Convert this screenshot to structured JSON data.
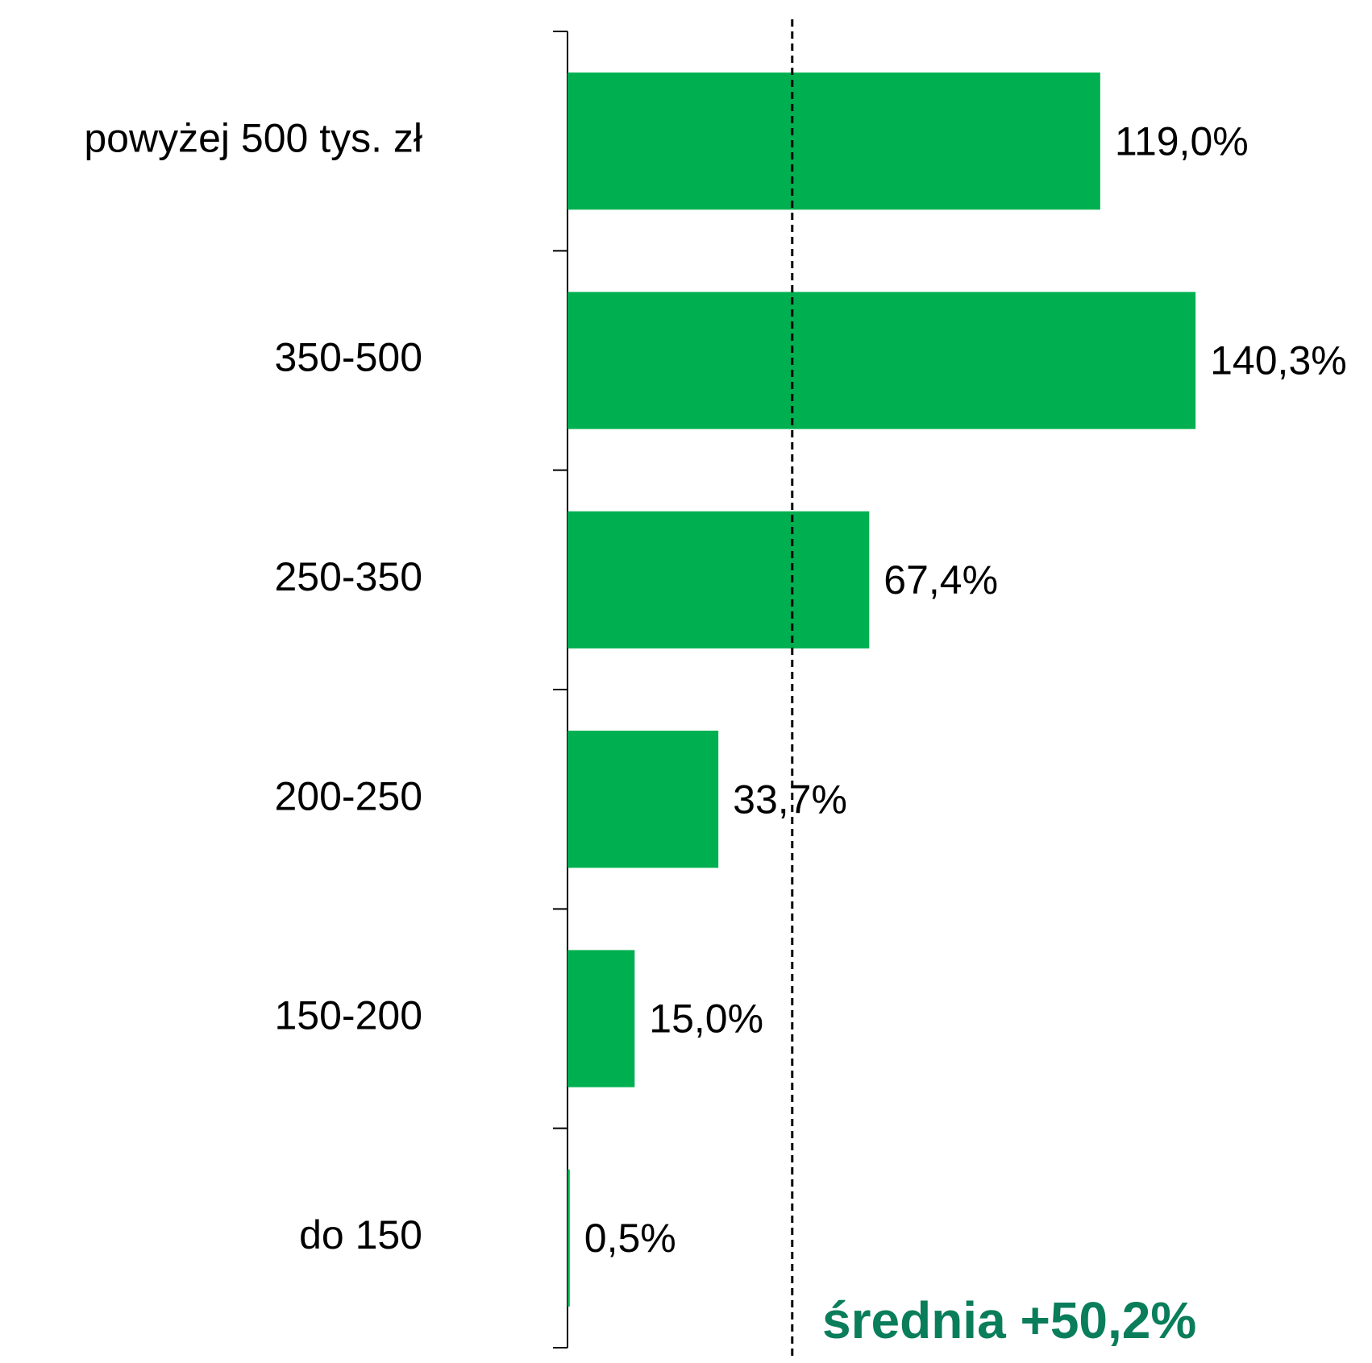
{
  "chart_data": {
    "type": "bar",
    "orientation": "horizontal",
    "categories": [
      "powyżej 500 tys. zł",
      "350-500",
      "250-350",
      "200-250",
      "150-200",
      "do 150"
    ],
    "values": [
      119.0,
      140.3,
      67.4,
      33.7,
      15.0,
      0.5
    ],
    "value_labels": [
      "119,0%",
      "140,3%",
      "67,4%",
      "33,7%",
      "15,0%",
      "0,5%"
    ],
    "color": "#00b050",
    "xlim": [
      0,
      150
    ],
    "annotation": {
      "text": "średnia +50,2%",
      "value": 50.2
    }
  }
}
